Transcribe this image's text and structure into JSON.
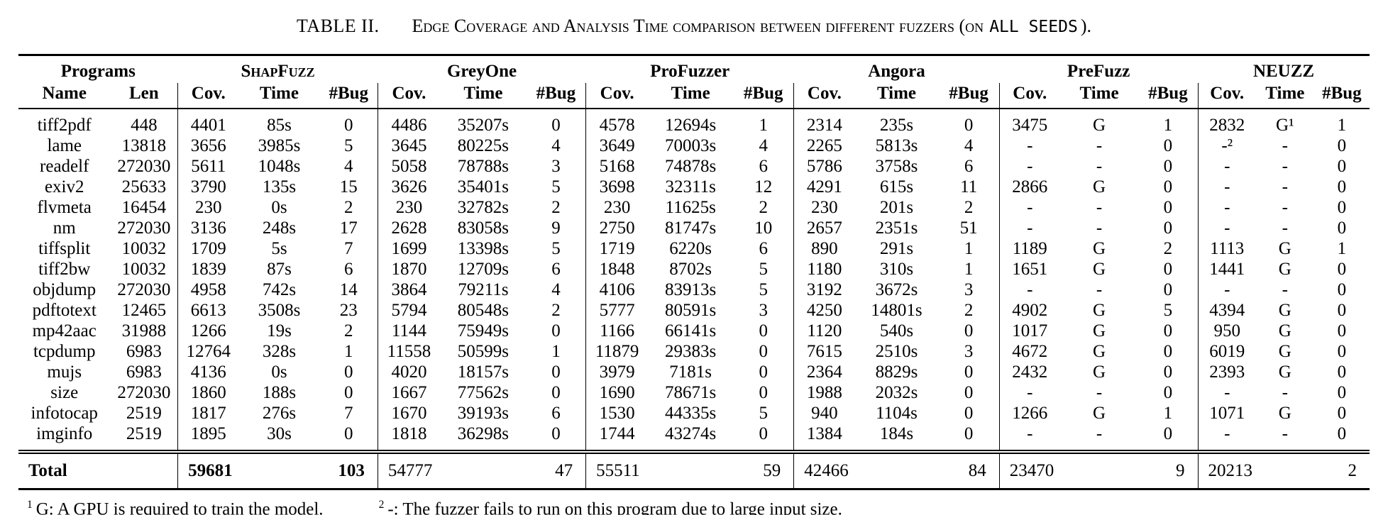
{
  "title": {
    "label": "TABLE II.",
    "caption_smallcaps": "Edge Coverage and Analysis Time comparison between different fuzzers (on",
    "caption_mono": "ALL SEEDS",
    "caption_end": ")."
  },
  "table": {
    "group_headers": [
      {
        "label": "Programs"
      },
      {
        "label": "ShapFuzz"
      },
      {
        "label": "GreyOne"
      },
      {
        "label": "ProFuzzer"
      },
      {
        "label": "Angora"
      },
      {
        "label": "PreFuzz"
      },
      {
        "label": "NEUZZ"
      }
    ],
    "sub_headers": [
      "Name",
      "Len",
      "Cov.",
      "Time",
      "#Bug",
      "Cov.",
      "Time",
      "#Bug",
      "Cov.",
      "Time",
      "#Bug",
      "Cov.",
      "Time",
      "#Bug",
      "Cov.",
      "Time",
      "#Bug",
      "Cov.",
      "Time",
      "#Bug"
    ],
    "rows": [
      {
        "name": "tiff2pdf",
        "len": "448",
        "fuzzers": [
          [
            "4401",
            "85s",
            "0"
          ],
          [
            "4486",
            "35207s",
            "0"
          ],
          [
            "4578",
            "12694s",
            "1"
          ],
          [
            "2314",
            "235s",
            "0"
          ],
          [
            "3475",
            "G",
            "1"
          ],
          [
            "2832",
            "G¹",
            "1"
          ]
        ]
      },
      {
        "name": "lame",
        "len": "13818",
        "fuzzers": [
          [
            "3656",
            "3985s",
            "5"
          ],
          [
            "3645",
            "80225s",
            "4"
          ],
          [
            "3649",
            "70003s",
            "4"
          ],
          [
            "2265",
            "5813s",
            "4"
          ],
          [
            "-",
            "-",
            "0"
          ],
          [
            "-²",
            "-",
            "0"
          ]
        ]
      },
      {
        "name": "readelf",
        "len": "272030",
        "fuzzers": [
          [
            "5611",
            "1048s",
            "4"
          ],
          [
            "5058",
            "78788s",
            "3"
          ],
          [
            "5168",
            "74878s",
            "6"
          ],
          [
            "5786",
            "3758s",
            "6"
          ],
          [
            "-",
            "-",
            "0"
          ],
          [
            "-",
            "-",
            "0"
          ]
        ]
      },
      {
        "name": "exiv2",
        "len": "25633",
        "fuzzers": [
          [
            "3790",
            "135s",
            "15"
          ],
          [
            "3626",
            "35401s",
            "5"
          ],
          [
            "3698",
            "32311s",
            "12"
          ],
          [
            "4291",
            "615s",
            "11"
          ],
          [
            "2866",
            "G",
            "0"
          ],
          [
            "-",
            "-",
            "0"
          ]
        ]
      },
      {
        "name": "flvmeta",
        "len": "16454",
        "fuzzers": [
          [
            "230",
            "0s",
            "2"
          ],
          [
            "230",
            "32782s",
            "2"
          ],
          [
            "230",
            "11625s",
            "2"
          ],
          [
            "230",
            "201s",
            "2"
          ],
          [
            "-",
            "-",
            "0"
          ],
          [
            "-",
            "-",
            "0"
          ]
        ]
      },
      {
        "name": "nm",
        "len": "272030",
        "fuzzers": [
          [
            "3136",
            "248s",
            "17"
          ],
          [
            "2628",
            "83058s",
            "9"
          ],
          [
            "2750",
            "81747s",
            "10"
          ],
          [
            "2657",
            "2351s",
            "51"
          ],
          [
            "-",
            "-",
            "0"
          ],
          [
            "-",
            "-",
            "0"
          ]
        ]
      },
      {
        "name": "tiffsplit",
        "len": "10032",
        "fuzzers": [
          [
            "1709",
            "5s",
            "7"
          ],
          [
            "1699",
            "13398s",
            "5"
          ],
          [
            "1719",
            "6220s",
            "6"
          ],
          [
            "890",
            "291s",
            "1"
          ],
          [
            "1189",
            "G",
            "2"
          ],
          [
            "1113",
            "G",
            "1"
          ]
        ]
      },
      {
        "name": "tiff2bw",
        "len": "10032",
        "fuzzers": [
          [
            "1839",
            "87s",
            "6"
          ],
          [
            "1870",
            "12709s",
            "6"
          ],
          [
            "1848",
            "8702s",
            "5"
          ],
          [
            "1180",
            "310s",
            "1"
          ],
          [
            "1651",
            "G",
            "0"
          ],
          [
            "1441",
            "G",
            "0"
          ]
        ]
      },
      {
        "name": "objdump",
        "len": "272030",
        "fuzzers": [
          [
            "4958",
            "742s",
            "14"
          ],
          [
            "3864",
            "79211s",
            "4"
          ],
          [
            "4106",
            "83913s",
            "5"
          ],
          [
            "3192",
            "3672s",
            "3"
          ],
          [
            "-",
            "-",
            "0"
          ],
          [
            "-",
            "-",
            "0"
          ]
        ]
      },
      {
        "name": "pdftotext",
        "len": "12465",
        "fuzzers": [
          [
            "6613",
            "3508s",
            "23"
          ],
          [
            "5794",
            "80548s",
            "2"
          ],
          [
            "5777",
            "80591s",
            "3"
          ],
          [
            "4250",
            "14801s",
            "2"
          ],
          [
            "4902",
            "G",
            "5"
          ],
          [
            "4394",
            "G",
            "0"
          ]
        ]
      },
      {
        "name": "mp42aac",
        "len": "31988",
        "fuzzers": [
          [
            "1266",
            "19s",
            "2"
          ],
          [
            "1144",
            "75949s",
            "0"
          ],
          [
            "1166",
            "66141s",
            "0"
          ],
          [
            "1120",
            "540s",
            "0"
          ],
          [
            "1017",
            "G",
            "0"
          ],
          [
            "950",
            "G",
            "0"
          ]
        ]
      },
      {
        "name": "tcpdump",
        "len": "6983",
        "fuzzers": [
          [
            "12764",
            "328s",
            "1"
          ],
          [
            "11558",
            "50599s",
            "1"
          ],
          [
            "11879",
            "29383s",
            "0"
          ],
          [
            "7615",
            "2510s",
            "3"
          ],
          [
            "4672",
            "G",
            "0"
          ],
          [
            "6019",
            "G",
            "0"
          ]
        ]
      },
      {
        "name": "mujs",
        "len": "6983",
        "fuzzers": [
          [
            "4136",
            "0s",
            "0"
          ],
          [
            "4020",
            "18157s",
            "0"
          ],
          [
            "3979",
            "7181s",
            "0"
          ],
          [
            "2364",
            "8829s",
            "0"
          ],
          [
            "2432",
            "G",
            "0"
          ],
          [
            "2393",
            "G",
            "0"
          ]
        ]
      },
      {
        "name": "size",
        "len": "272030",
        "fuzzers": [
          [
            "1860",
            "188s",
            "0"
          ],
          [
            "1667",
            "77562s",
            "0"
          ],
          [
            "1690",
            "78671s",
            "0"
          ],
          [
            "1988",
            "2032s",
            "0"
          ],
          [
            "-",
            "-",
            "0"
          ],
          [
            "-",
            "-",
            "0"
          ]
        ]
      },
      {
        "name": "infotocap",
        "len": "2519",
        "fuzzers": [
          [
            "1817",
            "276s",
            "7"
          ],
          [
            "1670",
            "39193s",
            "6"
          ],
          [
            "1530",
            "44335s",
            "5"
          ],
          [
            "940",
            "1104s",
            "0"
          ],
          [
            "1266",
            "G",
            "1"
          ],
          [
            "1071",
            "G",
            "0"
          ]
        ]
      },
      {
        "name": "imginfo",
        "len": "2519",
        "fuzzers": [
          [
            "1895",
            "30s",
            "0"
          ],
          [
            "1818",
            "36298s",
            "0"
          ],
          [
            "1744",
            "43274s",
            "0"
          ],
          [
            "1384",
            "184s",
            "0"
          ],
          [
            "-",
            "-",
            "0"
          ],
          [
            "-",
            "-",
            "0"
          ]
        ]
      }
    ],
    "total": {
      "label": "Total",
      "fuzzers": [
        [
          "59681",
          "",
          "103"
        ],
        [
          "54777",
          "",
          "47"
        ],
        [
          "55511",
          "",
          "59"
        ],
        [
          "42466",
          "",
          "84"
        ],
        [
          "23470",
          "",
          "9"
        ],
        [
          "20213",
          "",
          "2"
        ]
      ],
      "bold_group_index": 0
    }
  },
  "footnotes": [
    {
      "marker": "1",
      "text": "G: A GPU is required to train the model."
    },
    {
      "marker": "2",
      "text": "-: The fuzzer fails to run on this program due to large input size."
    }
  ]
}
